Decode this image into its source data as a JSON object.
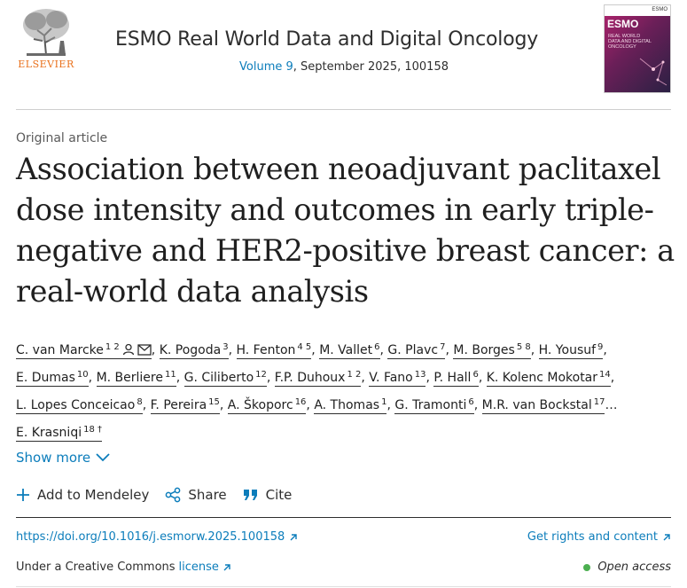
{
  "header": {
    "publisher": "ELSEVIER",
    "journal_title": "ESMO Real World Data and Digital Oncology",
    "volume_label": "Volume 9",
    "issue_rest": ", September 2025, 100158",
    "cover": {
      "brand": "ESMO",
      "top_mark": "ESMO",
      "subtitle_1": "REAL WORLD",
      "subtitle_2": "DATA AND DIGITAL",
      "subtitle_3": "ONCOLOGY"
    }
  },
  "article": {
    "type": "Original article",
    "title": "Association between neoadjuvant paclitaxel dose intensity and outcomes in early triple-negative and HER2-positive breast cancer: a real-world data analysis"
  },
  "authors": [
    {
      "name": "C. van Marcke",
      "sup": "1 2",
      "icons": true
    },
    {
      "name": "K. Pogoda",
      "sup": "3"
    },
    {
      "name": "H. Fenton",
      "sup": "4 5"
    },
    {
      "name": "M. Vallet",
      "sup": "6"
    },
    {
      "name": "G. Plavc",
      "sup": "7"
    },
    {
      "name": "M. Borges",
      "sup": "5 8"
    },
    {
      "name": "H. Yousuf",
      "sup": "9"
    },
    {
      "name": "E. Dumas",
      "sup": "10"
    },
    {
      "name": "M. Berliere",
      "sup": "11"
    },
    {
      "name": "G. Ciliberto",
      "sup": "12"
    },
    {
      "name": "F.P. Duhoux",
      "sup": "1 2"
    },
    {
      "name": "V. Fano",
      "sup": "13"
    },
    {
      "name": "P. Hall",
      "sup": "6"
    },
    {
      "name": "K. Kolenc Mokotar",
      "sup": "14"
    },
    {
      "name": "L. Lopes Conceicao",
      "sup": "8"
    },
    {
      "name": "F. Pereira",
      "sup": "15"
    },
    {
      "name": "A. Škoporc",
      "sup": "16"
    },
    {
      "name": "A. Thomas",
      "sup": "1"
    },
    {
      "name": "G. Tramonti",
      "sup": "6"
    },
    {
      "name": "M.R. van Bockstal",
      "sup": "17"
    },
    {
      "name": "E. Krasniqi",
      "sup": "18 †"
    }
  ],
  "authors_ellipsis": "…",
  "show_more": "Show more",
  "actions": {
    "mendeley": "Add to Mendeley",
    "share": "Share",
    "cite": "Cite"
  },
  "links": {
    "doi": "https://doi.org/10.1016/j.esmorw.2025.100158",
    "rights": "Get rights and content"
  },
  "license": {
    "prefix": "Under a Creative Commons",
    "link": "license"
  },
  "open_access": "Open access",
  "colors": {
    "link_blue": "#0c7dbb",
    "elsevier_orange": "#e9711c",
    "open_access_green": "#4caf50"
  }
}
